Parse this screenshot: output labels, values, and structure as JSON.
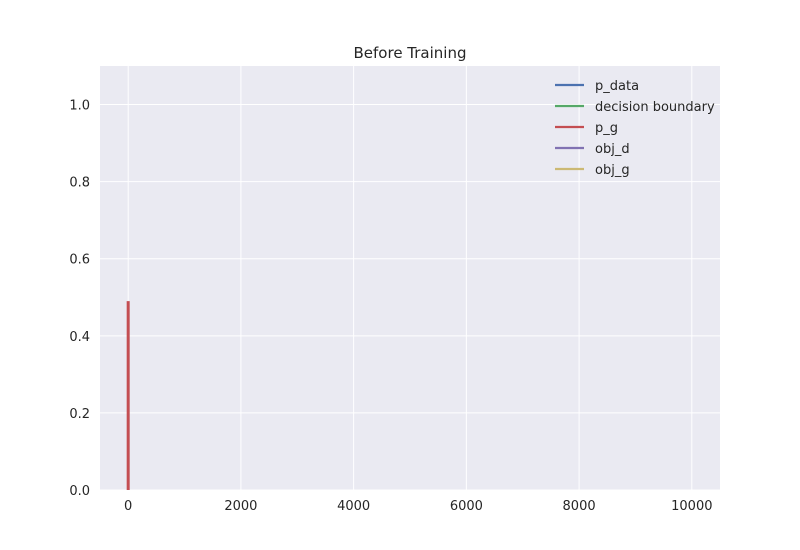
{
  "chart_data": {
    "type": "line",
    "title": "Before Training",
    "xlabel": "",
    "ylabel": "",
    "xlim": [
      -500,
      10500
    ],
    "ylim": [
      0,
      1.1
    ],
    "xticks": [
      0,
      2000,
      4000,
      6000,
      8000,
      10000
    ],
    "xtick_labels": [
      "0",
      "2000",
      "4000",
      "6000",
      "8000",
      "10000"
    ],
    "yticks": [
      0.0,
      0.2,
      0.4,
      0.6,
      0.8,
      1.0
    ],
    "ytick_labels": [
      "0.0",
      "0.2",
      "0.4",
      "0.6",
      "0.8",
      "1.0"
    ],
    "grid": true,
    "legend_position": "top-right",
    "series": [
      {
        "name": "p_data",
        "color": "#4c72b0",
        "x": [],
        "y": []
      },
      {
        "name": "decision boundary",
        "color": "#55a868",
        "x": [],
        "y": []
      },
      {
        "name": "p_g",
        "color": "#c44e52",
        "x": [
          0,
          0
        ],
        "y": [
          0,
          0.49
        ]
      },
      {
        "name": "obj_d",
        "color": "#8172b2",
        "x": [],
        "y": []
      },
      {
        "name": "obj_g",
        "color": "#ccb974",
        "x": [],
        "y": []
      }
    ]
  },
  "style": {
    "plot_background": "#eaeaf2",
    "grid_color": "#ffffff"
  }
}
